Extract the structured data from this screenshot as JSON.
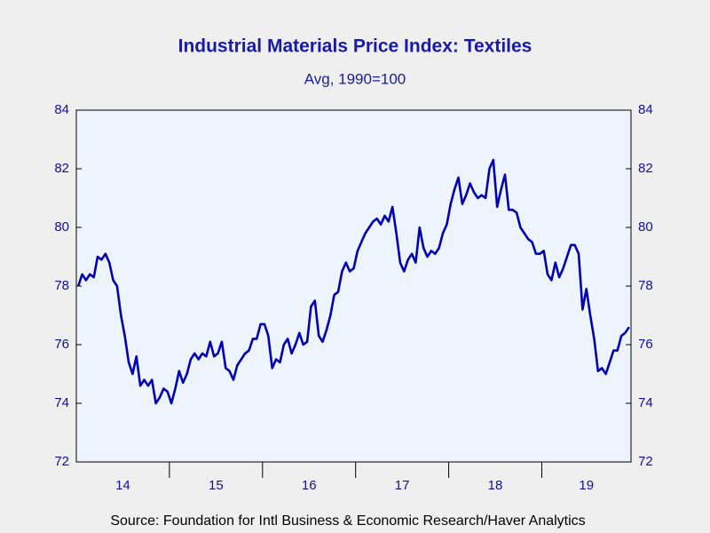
{
  "chart_data": {
    "type": "line",
    "title": "Industrial Materials Price Index: Textiles",
    "subtitle": "Avg, 1990=100",
    "source": "Source:  Foundation for Intl Business & Economic Research/Haver Analytics",
    "years": [
      "14",
      "15",
      "16",
      "17",
      "18",
      "19"
    ],
    "values_by_year": [
      [
        78.0,
        78.4,
        78.2,
        78.4,
        78.3,
        79.0,
        78.9,
        79.1,
        78.8,
        78.2,
        78.0,
        77.0,
        76.3,
        75.4,
        75.0,
        75.6,
        74.6,
        74.8,
        74.6,
        74.8,
        74.0,
        74.2,
        74.5,
        74.4
      ],
      [
        74.0,
        74.5,
        75.1,
        74.7,
        75.0,
        75.5,
        75.7,
        75.5,
        75.7,
        75.6,
        76.1,
        75.6,
        75.7,
        76.1,
        75.2,
        75.1,
        74.8,
        75.3,
        75.5,
        75.7,
        75.8,
        76.2,
        76.2,
        76.7
      ],
      [
        76.7,
        76.3,
        75.2,
        75.5,
        75.4,
        76.0,
        76.2,
        75.7,
        76.0,
        76.4,
        76.0,
        76.1,
        77.3,
        77.5,
        76.3,
        76.1,
        76.5,
        77.0,
        77.7,
        77.8,
        78.5,
        78.8,
        78.5,
        78.6
      ],
      [
        79.2,
        79.5,
        79.8,
        80.0,
        80.2,
        80.3,
        80.1,
        80.4,
        80.2,
        80.7,
        79.8,
        78.8,
        78.5,
        78.9,
        79.1,
        78.8,
        80.0,
        79.3,
        79.0,
        79.2,
        79.1,
        79.3,
        79.8,
        80.1
      ],
      [
        80.8,
        81.3,
        81.7,
        80.8,
        81.1,
        81.5,
        81.2,
        81.0,
        81.1,
        81.0,
        82.0,
        82.3,
        80.7,
        81.3,
        81.8,
        80.6,
        80.6,
        80.5,
        80.0,
        79.8,
        79.6,
        79.5,
        79.1,
        79.1
      ],
      [
        79.2,
        78.4,
        78.2,
        78.8,
        78.3,
        78.6,
        79.0,
        79.4,
        79.4,
        79.1,
        77.2,
        77.9,
        77.0,
        76.2,
        75.1,
        75.2,
        75.0,
        75.4,
        75.8,
        75.8,
        76.3,
        76.4,
        76.6
      ]
    ],
    "color": "#0000b4",
    "ylim": [
      72,
      84
    ],
    "yticks": [
      72,
      74,
      76,
      78,
      80,
      82,
      84
    ]
  }
}
